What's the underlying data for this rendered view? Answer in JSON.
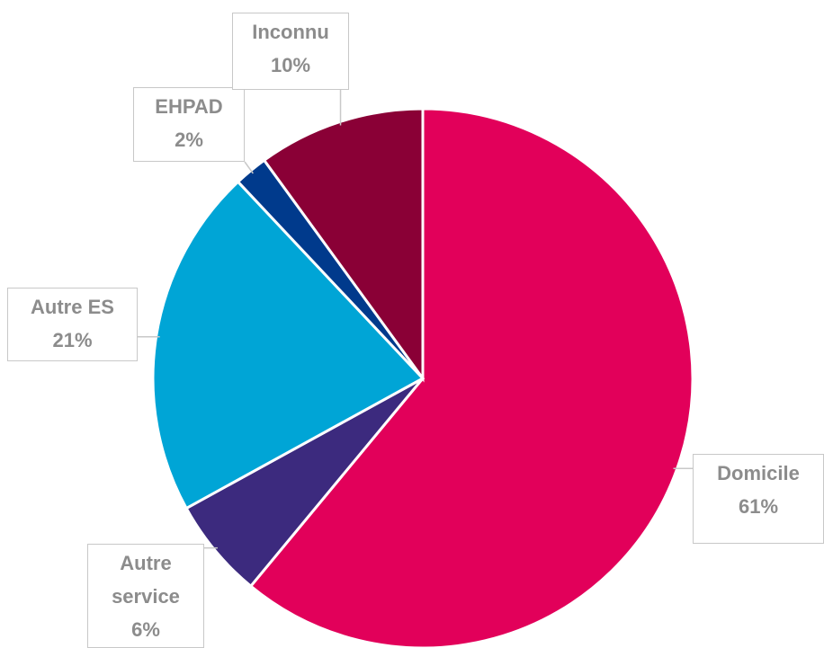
{
  "chart_data": {
    "type": "pie",
    "categories": [
      "Domicile",
      "Autre service",
      "Autre ES",
      "EHPAD",
      "Inconnu"
    ],
    "values": [
      61,
      6,
      21,
      2,
      10
    ],
    "value_labels": [
      "61%",
      "6%",
      "21%",
      "2%",
      "10%"
    ],
    "colors": [
      "#e2005a",
      "#3c2a7e",
      "#00a5d6",
      "#003a8c",
      "#8a0036"
    ]
  }
}
